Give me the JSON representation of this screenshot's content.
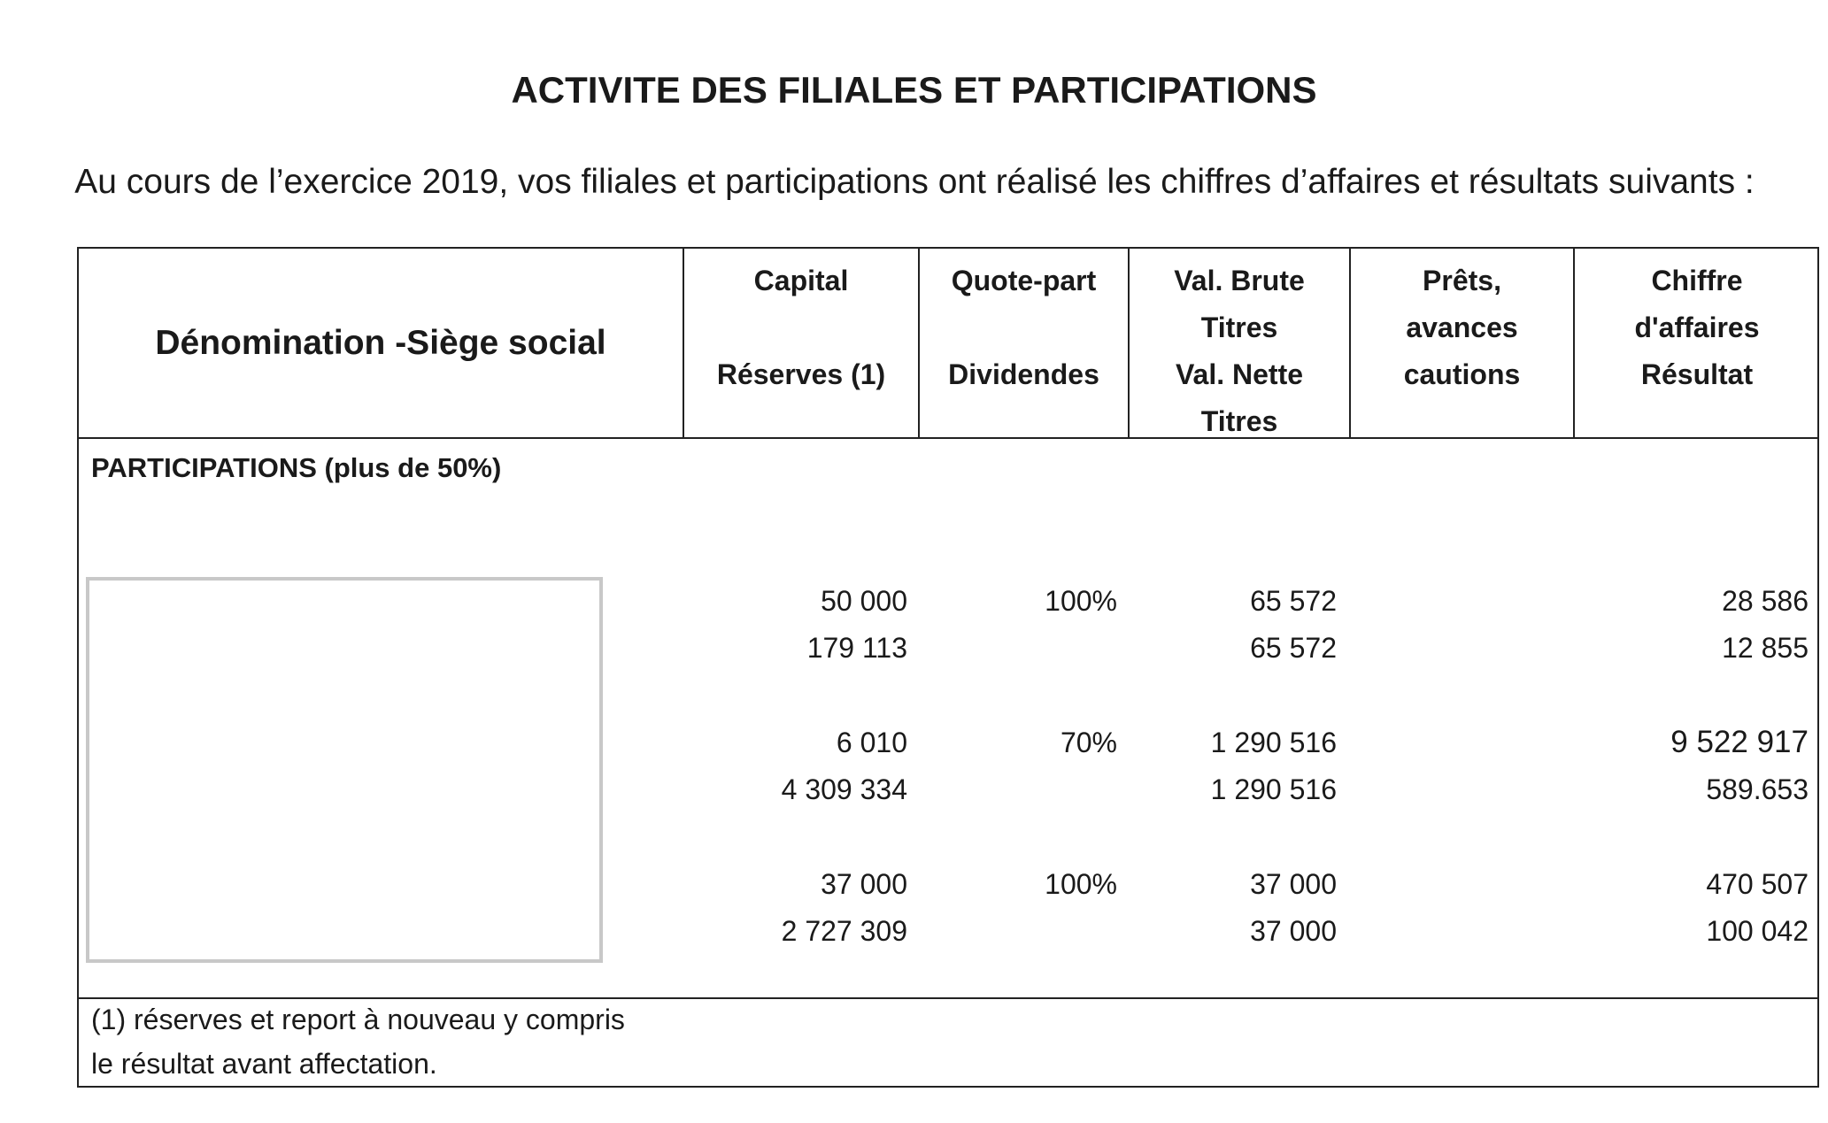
{
  "title": "ACTIVITE DES FILIALES ET PARTICIPATIONS",
  "intro": "Au cours de l’exercice 2019, vos filiales et participations ont réalisé les chiffres d’affaires et résultats suivants :",
  "table": {
    "headers": {
      "denomination": "Dénomination -Siège social",
      "capital": [
        "Capital",
        "",
        "Réserves (1)"
      ],
      "quote_part": [
        "Quote-part",
        "",
        "Dividendes"
      ],
      "val": [
        "Val. Brute",
        "Titres",
        "Val. Nette",
        "Titres"
      ],
      "prets": [
        "Prêts,",
        "avances",
        "cautions"
      ],
      "ca": [
        "Chiffre",
        "d'affaires",
        "Résultat"
      ]
    },
    "section_label": "PARTICIPATIONS (plus de 50%)",
    "rows": [
      {
        "capital": "50 000",
        "reserves": "179 113",
        "quote_part": "100%",
        "dividendes": "",
        "val_brute": "65 572",
        "val_nette": "65 572",
        "prets": "",
        "ca": "28 586",
        "resultat": "12 855"
      },
      {
        "capital": "6 010",
        "reserves": "4 309 334",
        "quote_part": "70%",
        "dividendes": "",
        "val_brute": "1 290 516",
        "val_nette": "1 290 516",
        "prets": "",
        "ca": "9 522 917",
        "resultat": "589.653"
      },
      {
        "capital": "37 000",
        "reserves": "2 727 309",
        "quote_part": "100%",
        "dividendes": "",
        "val_brute": "37 000",
        "val_nette": "37 000",
        "prets": "",
        "ca": "470 507",
        "resultat": "100 042"
      }
    ],
    "footnote": [
      "(1) réserves et report à nouveau y compris",
      "le résultat avant affectation."
    ]
  }
}
